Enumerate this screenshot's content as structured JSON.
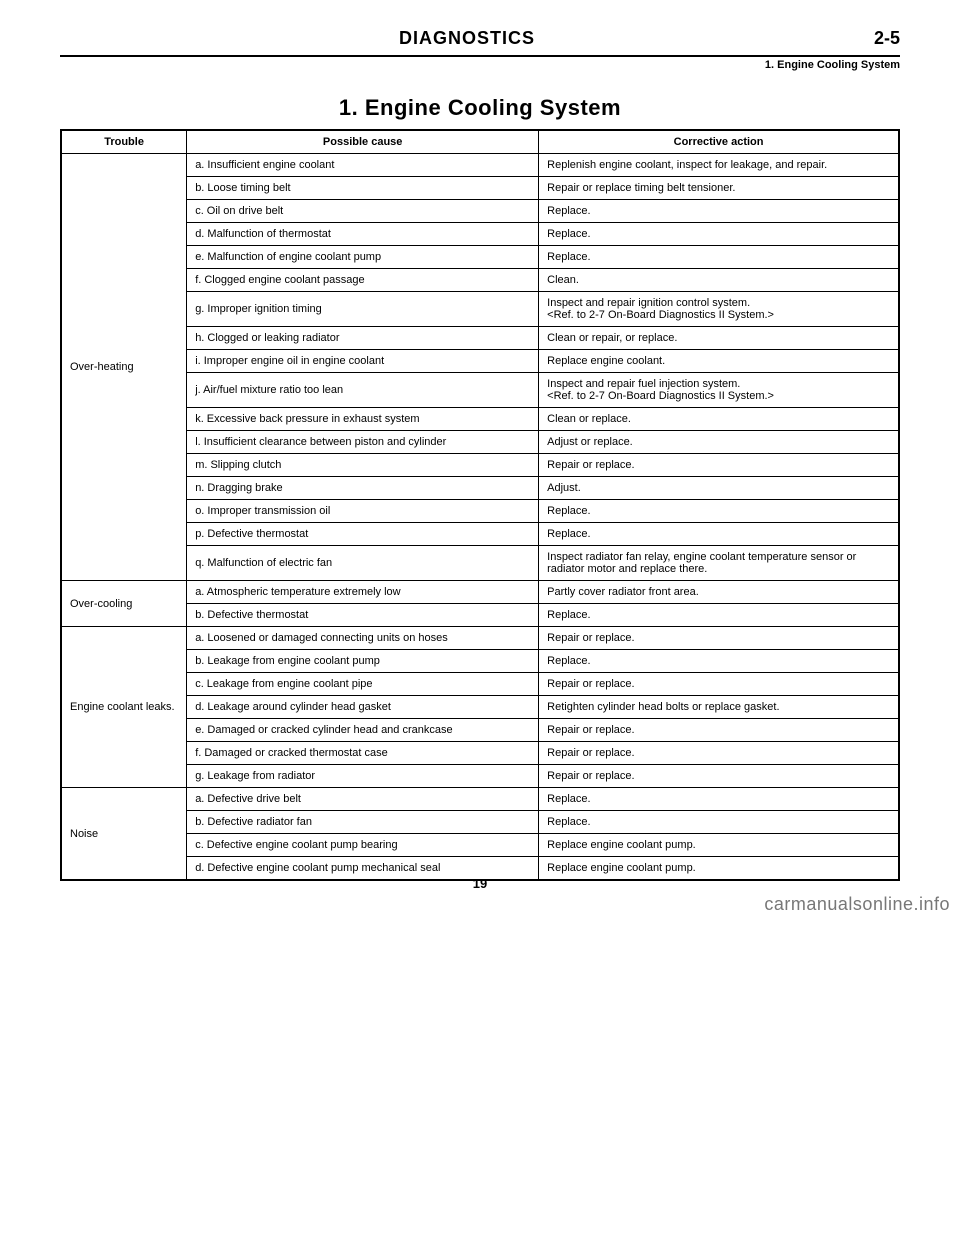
{
  "header": {
    "center": "DIAGNOSTICS",
    "right": "2-5",
    "sub_right": "1. Engine Cooling System"
  },
  "section_title": "1. Engine Cooling System",
  "columns": {
    "trouble": "Trouble",
    "cause": "Possible cause",
    "action": "Corrective action"
  },
  "groups": [
    {
      "trouble": "Over-heating",
      "rows": [
        {
          "cause": "a. Insufficient engine coolant",
          "action": "Replenish engine coolant, inspect for leakage, and repair."
        },
        {
          "cause": "b. Loose timing belt",
          "action": "Repair or replace timing belt tensioner."
        },
        {
          "cause": "c. Oil on drive belt",
          "action": "Replace."
        },
        {
          "cause": "d. Malfunction of thermostat",
          "action": "Replace."
        },
        {
          "cause": "e. Malfunction of engine coolant pump",
          "action": "Replace."
        },
        {
          "cause": "f. Clogged engine coolant passage",
          "action": "Clean."
        },
        {
          "cause": "g. Improper ignition timing",
          "action": "Inspect and repair ignition control system.\n<Ref. to 2-7 On-Board Diagnostics II System.>"
        },
        {
          "cause": "h. Clogged or leaking radiator",
          "action": "Clean or repair, or replace."
        },
        {
          "cause": "i. Improper engine oil in engine coolant",
          "action": "Replace engine coolant."
        },
        {
          "cause": "j. Air/fuel mixture ratio too lean",
          "action": "Inspect and repair fuel injection system.\n<Ref. to 2-7 On-Board Diagnostics II System.>"
        },
        {
          "cause": "k. Excessive back pressure in exhaust system",
          "action": "Clean or replace."
        },
        {
          "cause": "l. Insufficient clearance between piston and cylinder",
          "action": "Adjust or replace."
        },
        {
          "cause": "m. Slipping clutch",
          "action": "Repair or replace."
        },
        {
          "cause": "n. Dragging brake",
          "action": "Adjust."
        },
        {
          "cause": "o. Improper transmission oil",
          "action": "Replace."
        },
        {
          "cause": "p. Defective thermostat",
          "action": "Replace."
        },
        {
          "cause": "q. Malfunction of electric fan",
          "action": "Inspect radiator fan relay, engine coolant temperature sensor or radiator motor and replace there."
        }
      ]
    },
    {
      "trouble": "Over-cooling",
      "rows": [
        {
          "cause": "a. Atmospheric temperature extremely low",
          "action": "Partly cover radiator front area."
        },
        {
          "cause": "b. Defective thermostat",
          "action": "Replace."
        }
      ]
    },
    {
      "trouble": "Engine coolant leaks.",
      "rows": [
        {
          "cause": "a. Loosened or damaged connecting units on hoses",
          "action": "Repair or replace."
        },
        {
          "cause": "b. Leakage from engine coolant pump",
          "action": "Replace."
        },
        {
          "cause": "c. Leakage from engine coolant pipe",
          "action": "Repair or replace."
        },
        {
          "cause": "d. Leakage around cylinder head gasket",
          "action": "Retighten cylinder head bolts or replace gasket."
        },
        {
          "cause": "e. Damaged or cracked cylinder head and crankcase",
          "action": "Repair or replace."
        },
        {
          "cause": "f. Damaged or cracked thermostat case",
          "action": "Repair or replace."
        },
        {
          "cause": "g. Leakage from radiator",
          "action": "Repair or replace."
        }
      ]
    },
    {
      "trouble": "Noise",
      "rows": [
        {
          "cause": "a. Defective drive belt",
          "action": "Replace."
        },
        {
          "cause": "b. Defective radiator fan",
          "action": "Replace."
        },
        {
          "cause": "c. Defective engine coolant pump bearing",
          "action": "Replace engine coolant pump."
        },
        {
          "cause": "d. Defective engine coolant pump mechanical seal",
          "action": "Replace engine coolant pump."
        }
      ]
    }
  ],
  "page_number": "19",
  "watermark": "carmanualsonline.info"
}
